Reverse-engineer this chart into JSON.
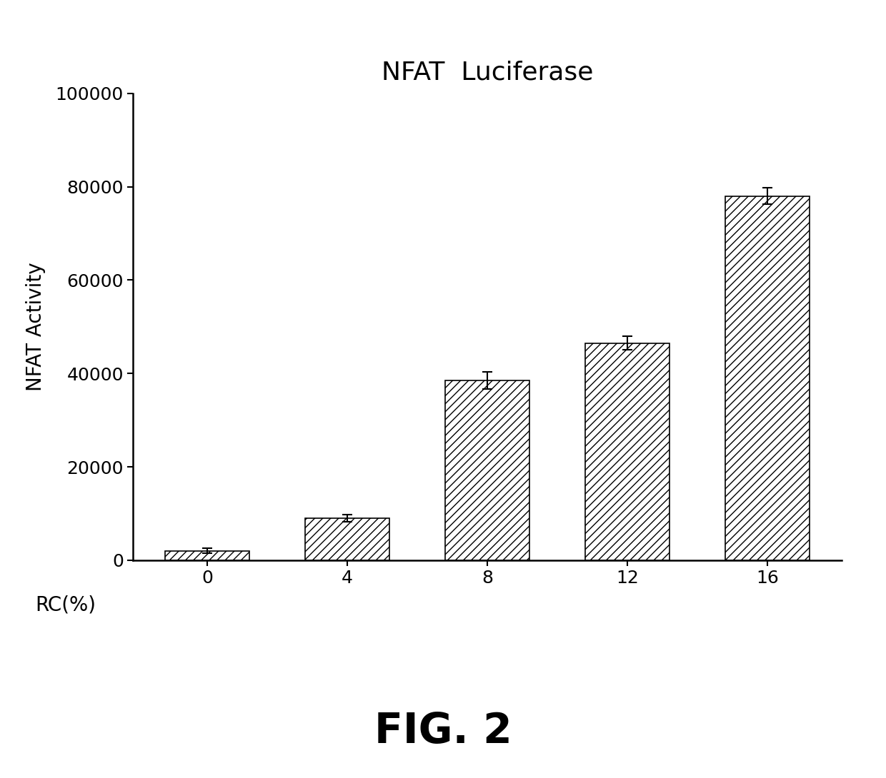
{
  "title": "NFAT  Luciferase",
  "xlabel": "RC(%)",
  "ylabel": "NFAT Activity",
  "categories": [
    "0",
    "4",
    "8",
    "12",
    "16"
  ],
  "values": [
    2000,
    9000,
    38500,
    46500,
    78000
  ],
  "errors": [
    500,
    700,
    1800,
    1500,
    1800
  ],
  "ylim": [
    0,
    100000
  ],
  "yticks": [
    0,
    20000,
    40000,
    60000,
    80000,
    100000
  ],
  "bar_color": "white",
  "bar_edgecolor": "black",
  "hatch": "///",
  "fig_label": "FIG. 2",
  "background_color": "white",
  "title_fontsize": 26,
  "axis_label_fontsize": 20,
  "tick_fontsize": 18,
  "fig_label_fontsize": 42,
  "bar_width": 0.6
}
